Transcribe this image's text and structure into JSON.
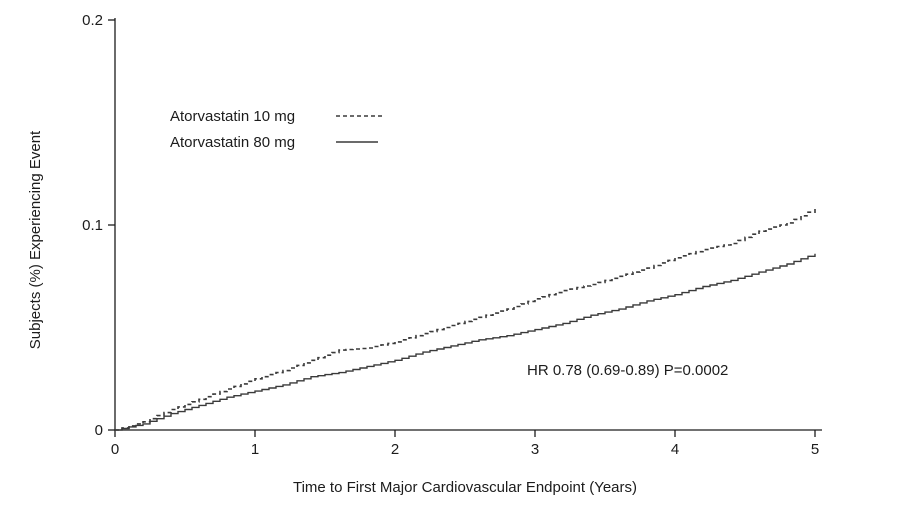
{
  "chart_data": {
    "type": "line",
    "title": "",
    "xlabel": "Time to First Major Cardiovascular Endpoint (Years)",
    "ylabel": "Subjects (%) Experiencing Event",
    "xlim": [
      0,
      5
    ],
    "ylim": [
      0,
      0.2
    ],
    "xticks": [
      0,
      1,
      2,
      3,
      4,
      5
    ],
    "xtick_labels": [
      "0",
      "1",
      "2",
      "3",
      "4",
      "5"
    ],
    "yticks": [
      0,
      0.1,
      0.2
    ],
    "ytick_labels": [
      "0",
      "0.1",
      "0.2"
    ],
    "grid": false,
    "legend_position": "upper-left-inside",
    "annotation": "HR 0.78 (0.69-0.89)  P=0.0002",
    "line_color": "#3a3a3a",
    "x": [
      0,
      0.2,
      0.4,
      0.6,
      0.8,
      1.0,
      1.2,
      1.4,
      1.6,
      1.8,
      2.0,
      2.2,
      2.4,
      2.6,
      2.8,
      3.0,
      3.2,
      3.4,
      3.6,
      3.8,
      4.0,
      4.2,
      4.4,
      4.6,
      4.8,
      5.0
    ],
    "series": [
      {
        "name": "Atorvastatin 10 mg",
        "style": "dashed",
        "values": [
          0,
          0.004,
          0.01,
          0.015,
          0.02,
          0.025,
          0.029,
          0.034,
          0.039,
          0.04,
          0.043,
          0.047,
          0.051,
          0.055,
          0.059,
          0.064,
          0.068,
          0.071,
          0.075,
          0.079,
          0.084,
          0.088,
          0.091,
          0.097,
          0.101,
          0.108
        ]
      },
      {
        "name": "Atorvastatin 80 mg",
        "style": "solid",
        "values": [
          0,
          0.003,
          0.008,
          0.012,
          0.016,
          0.019,
          0.022,
          0.026,
          0.028,
          0.031,
          0.034,
          0.038,
          0.041,
          0.044,
          0.046,
          0.049,
          0.052,
          0.056,
          0.059,
          0.063,
          0.066,
          0.07,
          0.073,
          0.077,
          0.081,
          0.086
        ]
      }
    ]
  }
}
